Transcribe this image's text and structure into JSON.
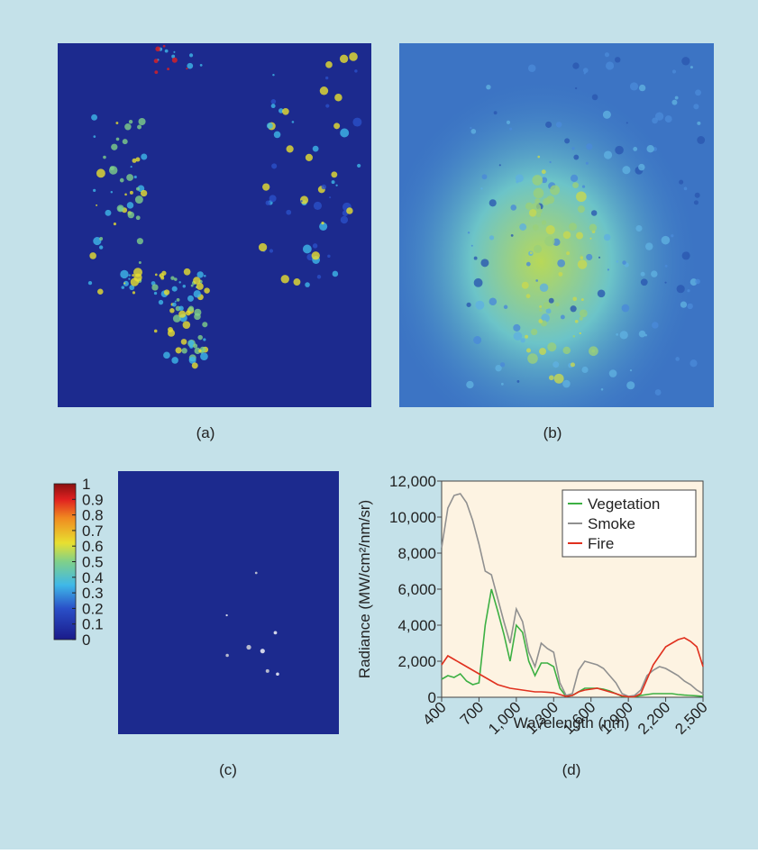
{
  "panels": {
    "a": "(a)",
    "b": "(b)",
    "c": "(c)",
    "d": "(d)"
  },
  "colorbar": {
    "ylim": [
      0,
      1
    ],
    "yticks": [
      0,
      0.1,
      0.2,
      0.3,
      0.4,
      0.5,
      0.6,
      0.7,
      0.8,
      0.9,
      1
    ]
  },
  "chart_data": {
    "type": "line",
    "x_label": "Wavelength (nm)",
    "y_label": "Radiance (MW/cm²/nm/sr)",
    "x": [
      400,
      450,
      500,
      550,
      600,
      650,
      700,
      750,
      800,
      850,
      900,
      950,
      1000,
      1050,
      1100,
      1150,
      1200,
      1250,
      1300,
      1350,
      1400,
      1450,
      1500,
      1550,
      1600,
      1650,
      1700,
      1750,
      1800,
      1850,
      1900,
      1950,
      2000,
      2050,
      2100,
      2150,
      2200,
      2250,
      2300,
      2350,
      2400,
      2450,
      2500
    ],
    "series": [
      {
        "name": "Vegetation",
        "color": "#3cb043",
        "values": [
          1000,
          1200,
          1100,
          1300,
          900,
          700,
          800,
          4000,
          6000,
          4800,
          3500,
          2000,
          4000,
          3600,
          2000,
          1200,
          1900,
          1900,
          1700,
          500,
          50,
          100,
          300,
          500,
          500,
          500,
          450,
          350,
          200,
          50,
          20,
          30,
          100,
          150,
          200,
          200,
          200,
          200,
          150,
          120,
          100,
          80,
          50
        ]
      },
      {
        "name": "Smoke",
        "color": "#909090",
        "values": [
          8300,
          10500,
          11200,
          11300,
          10800,
          9800,
          8500,
          7000,
          6800,
          5500,
          4200,
          3000,
          4900,
          4200,
          2500,
          1700,
          3000,
          2700,
          2500,
          800,
          100,
          200,
          1500,
          2000,
          1900,
          1800,
          1600,
          1200,
          800,
          200,
          50,
          100,
          400,
          1200,
          1500,
          1700,
          1600,
          1400,
          1200,
          900,
          700,
          400,
          200
        ]
      },
      {
        "name": "Fire",
        "color": "#e0301e",
        "values": [
          1800,
          2300,
          2100,
          1900,
          1700,
          1500,
          1300,
          1100,
          900,
          700,
          600,
          500,
          450,
          400,
          350,
          300,
          300,
          280,
          250,
          150,
          50,
          100,
          300,
          400,
          450,
          500,
          400,
          300,
          200,
          80,
          20,
          30,
          200,
          1000,
          1800,
          2300,
          2800,
          3000,
          3200,
          3300,
          3100,
          2800,
          1700
        ]
      }
    ],
    "xlim": [
      400,
      2500
    ],
    "xticks": [
      400,
      700,
      {
        "value": 1000,
        "label": "1,000"
      },
      {
        "value": 1300,
        "label": "1,300"
      },
      {
        "value": 1600,
        "label": "1,600"
      },
      {
        "value": 1900,
        "label": "1,900"
      },
      {
        "value": 2200,
        "label": "2,200"
      },
      {
        "value": 2500,
        "label": "2,500"
      }
    ],
    "ylim": [
      0,
      12000
    ],
    "yticks": [
      0,
      {
        "value": 2000,
        "label": "2,000"
      },
      {
        "value": 4000,
        "label": "4,000"
      },
      {
        "value": 6000,
        "label": "6,000"
      },
      {
        "value": 8000,
        "label": "8,000"
      },
      {
        "value": 10000,
        "label": "10,000"
      },
      {
        "value": 12000,
        "label": "12,000"
      }
    ],
    "legend": "top-right"
  }
}
